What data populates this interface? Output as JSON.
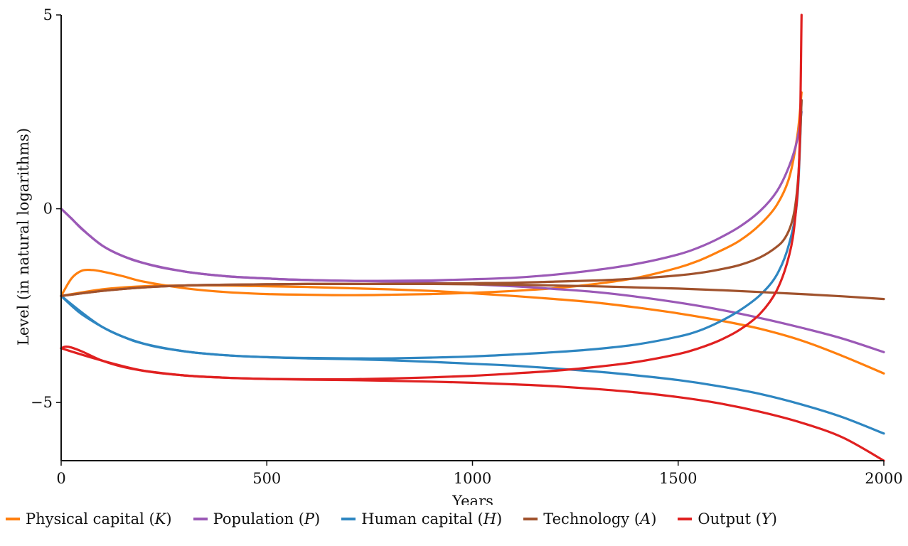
{
  "chart_data": {
    "type": "line",
    "xlabel": "Years",
    "ylabel": "Level (in natural logarithms)",
    "xlim": [
      0,
      2000
    ],
    "ylim": [
      -6.5,
      5
    ],
    "xticks": [
      0,
      500,
      1000,
      1500,
      2000
    ],
    "yticks": [
      5,
      0,
      -5
    ],
    "ytick_labels": [
      "5",
      "0",
      "−5"
    ],
    "grid": false,
    "legend_position": "bottom",
    "series": [
      {
        "name": "Physical capital",
        "symbol": "K",
        "color": "#ff7f0e",
        "branches": [
          {
            "x": [
              0,
              25,
              50,
              75,
              100,
              150,
              200,
              300,
              400,
              500,
              600,
              700,
              800,
              900,
              1000,
              1100,
              1200,
              1300,
              1400,
              1500,
              1550,
              1600,
              1650,
              1700,
              1740,
              1770,
              1790,
              1800
            ],
            "y": [
              -2.25,
              -1.8,
              -1.6,
              -1.58,
              -1.62,
              -1.74,
              -1.88,
              -2.05,
              -2.15,
              -2.2,
              -2.22,
              -2.23,
              -2.22,
              -2.2,
              -2.17,
              -2.12,
              -2.05,
              -1.94,
              -1.78,
              -1.52,
              -1.34,
              -1.1,
              -0.82,
              -0.4,
              0.1,
              0.8,
              1.9,
              3.0
            ]
          },
          {
            "x": [
              0,
              100,
              200,
              300,
              400,
              500,
              600,
              700,
              800,
              900,
              1000,
              1100,
              1200,
              1300,
              1400,
              1500,
              1600,
              1700,
              1800,
              1900,
              2000
            ],
            "y": [
              -2.25,
              -2.08,
              -2.0,
              -1.98,
              -1.98,
              -2.0,
              -2.02,
              -2.05,
              -2.08,
              -2.12,
              -2.18,
              -2.25,
              -2.33,
              -2.42,
              -2.55,
              -2.7,
              -2.88,
              -3.1,
              -3.4,
              -3.8,
              -4.25
            ]
          }
        ]
      },
      {
        "name": "Population",
        "symbol": "P",
        "color": "#9b59b6",
        "branches": [
          {
            "x": [
              0,
              25,
              50,
              100,
              150,
              200,
              300,
              400,
              500,
              600,
              700,
              800,
              900,
              1000,
              1100,
              1200,
              1300,
              1400,
              1500,
              1550,
              1600,
              1650,
              1700,
              1740,
              1770,
              1790,
              1800
            ],
            "y": [
              0.0,
              -0.25,
              -0.52,
              -0.95,
              -1.22,
              -1.4,
              -1.62,
              -1.74,
              -1.8,
              -1.84,
              -1.86,
              -1.86,
              -1.85,
              -1.82,
              -1.78,
              -1.7,
              -1.58,
              -1.42,
              -1.18,
              -1.0,
              -0.76,
              -0.46,
              -0.05,
              0.45,
              1.1,
              1.8,
              2.5
            ]
          },
          {
            "x": [
              0,
              100,
              200,
              300,
              400,
              500,
              600,
              700,
              800,
              900,
              1000,
              1100,
              1200,
              1300,
              1400,
              1500,
              1600,
              1700,
              1800,
              1900,
              2000
            ],
            "y": [
              0.0,
              -0.95,
              -1.4,
              -1.62,
              -1.74,
              -1.8,
              -1.84,
              -1.86,
              -1.88,
              -1.91,
              -1.95,
              -2.0,
              -2.07,
              -2.15,
              -2.27,
              -2.42,
              -2.6,
              -2.82,
              -3.07,
              -3.35,
              -3.7
            ]
          }
        ]
      },
      {
        "name": "Human capital",
        "symbol": "H",
        "color": "#2e86c1",
        "branches": [
          {
            "x": [
              0,
              25,
              50,
              100,
              150,
              200,
              300,
              400,
              500,
              600,
              700,
              800,
              900,
              1000,
              1100,
              1200,
              1300,
              1400,
              1500,
              1550,
              1600,
              1650,
              1700,
              1740,
              1770,
              1790,
              1800
            ],
            "y": [
              -2.25,
              -2.5,
              -2.72,
              -3.05,
              -3.3,
              -3.48,
              -3.68,
              -3.78,
              -3.83,
              -3.85,
              -3.86,
              -3.86,
              -3.84,
              -3.81,
              -3.76,
              -3.7,
              -3.62,
              -3.5,
              -3.3,
              -3.15,
              -2.92,
              -2.62,
              -2.22,
              -1.7,
              -0.9,
              0.3,
              2.8
            ]
          },
          {
            "x": [
              0,
              100,
              200,
              300,
              400,
              500,
              600,
              700,
              800,
              900,
              1000,
              1100,
              1200,
              1300,
              1400,
              1500,
              1600,
              1700,
              1800,
              1900,
              2000
            ],
            "y": [
              -2.25,
              -3.05,
              -3.48,
              -3.68,
              -3.78,
              -3.83,
              -3.86,
              -3.88,
              -3.91,
              -3.95,
              -4.0,
              -4.05,
              -4.12,
              -4.2,
              -4.3,
              -4.42,
              -4.58,
              -4.78,
              -5.05,
              -5.38,
              -5.8
            ]
          }
        ]
      },
      {
        "name": "Technology",
        "symbol": "A",
        "color": "#a0522d",
        "branches": [
          {
            "x": [
              0,
              100,
              200,
              300,
              400,
              500,
              600,
              700,
              800,
              900,
              1000,
              1100,
              1200,
              1300,
              1400,
              1500,
              1550,
              1600,
              1650,
              1700,
              1740,
              1760,
              1775,
              1785,
              1793,
              1800
            ],
            "y": [
              -2.25,
              -2.12,
              -2.03,
              -1.98,
              -1.96,
              -1.95,
              -1.94,
              -1.94,
              -1.94,
              -1.93,
              -1.92,
              -1.91,
              -1.88,
              -1.85,
              -1.8,
              -1.72,
              -1.66,
              -1.57,
              -1.45,
              -1.25,
              -0.98,
              -0.75,
              -0.4,
              0.1,
              1.0,
              2.8
            ]
          },
          {
            "x": [
              0,
              100,
              200,
              300,
              400,
              500,
              600,
              700,
              800,
              900,
              1000,
              1100,
              1200,
              1300,
              1400,
              1500,
              1600,
              1700,
              1800,
              1900,
              2000
            ],
            "y": [
              -2.25,
              -2.12,
              -2.03,
              -1.98,
              -1.96,
              -1.95,
              -1.94,
              -1.94,
              -1.94,
              -1.94,
              -1.95,
              -1.96,
              -1.98,
              -2.0,
              -2.03,
              -2.06,
              -2.1,
              -2.15,
              -2.2,
              -2.26,
              -2.33
            ]
          }
        ]
      },
      {
        "name": "Output",
        "symbol": "Y",
        "color": "#e02020",
        "branches": [
          {
            "x": [
              0,
              10,
              25,
              50,
              100,
              150,
              200,
              300,
              400,
              500,
              600,
              700,
              800,
              900,
              1000,
              1100,
              1200,
              1300,
              1400,
              1500,
              1550,
              1600,
              1650,
              1700,
              1740,
              1770,
              1785,
              1795,
              1800
            ],
            "y": [
              -3.6,
              -3.56,
              -3.58,
              -3.68,
              -3.92,
              -4.08,
              -4.18,
              -4.3,
              -4.36,
              -4.39,
              -4.4,
              -4.4,
              -4.38,
              -4.35,
              -4.31,
              -4.25,
              -4.18,
              -4.08,
              -3.95,
              -3.75,
              -3.6,
              -3.4,
              -3.12,
              -2.7,
              -2.1,
              -1.2,
              -0.2,
              1.5,
              5.0
            ]
          },
          {
            "x": [
              0,
              100,
              200,
              300,
              400,
              500,
              600,
              700,
              800,
              900,
              1000,
              1100,
              1200,
              1300,
              1400,
              1500,
              1600,
              1700,
              1800,
              1900,
              2000
            ],
            "y": [
              -3.6,
              -3.92,
              -4.18,
              -4.3,
              -4.36,
              -4.39,
              -4.41,
              -4.42,
              -4.44,
              -4.46,
              -4.49,
              -4.53,
              -4.58,
              -4.65,
              -4.74,
              -4.86,
              -5.02,
              -5.24,
              -5.52,
              -5.9,
              -6.5
            ]
          }
        ]
      }
    ]
  }
}
